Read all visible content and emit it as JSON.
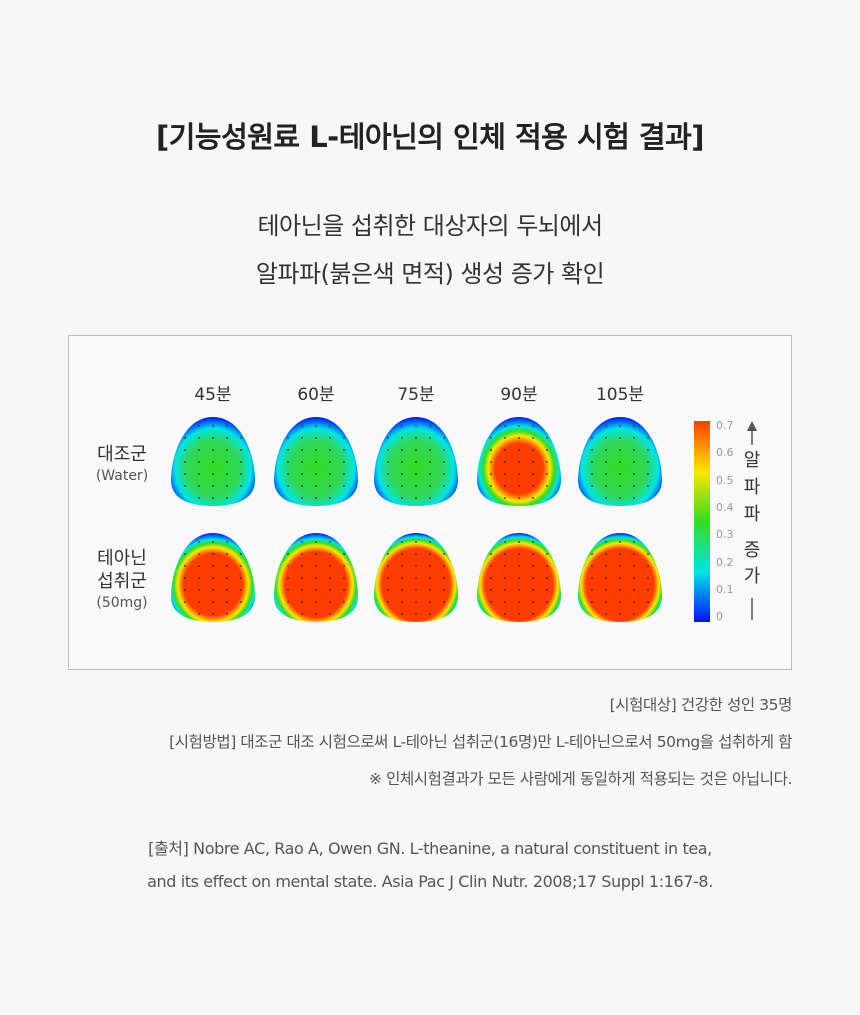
{
  "title": "[기능성원료 L-테아닌의 인체 적용 시험 결과]",
  "subtitle": [
    "테아닌을 섭취한 대상자의 두뇌에서",
    "알파파(붉은색 면적) 생성 증가 확인"
  ],
  "chart_data": {
    "type": "heatmap",
    "columns": [
      "45분",
      "60분",
      "75분",
      "90분",
      "105분"
    ],
    "rows": [
      {
        "label": "대조군",
        "sublabel": "(Water)",
        "alpha_level": [
          0.3,
          0.33,
          0.33,
          0.37,
          0.33
        ]
      },
      {
        "label_lines": [
          "테아닌",
          "섭취군"
        ],
        "sublabel": "(50mg)",
        "alpha_level": [
          0.55,
          0.6,
          0.7,
          0.7,
          0.7
        ]
      }
    ],
    "colorbar": {
      "min": 0,
      "max": 0.7,
      "ticks": [
        "0.7",
        "0.6",
        "0.5",
        "0.4",
        "0.3",
        "0.2",
        "0.1",
        "0"
      ],
      "colors": [
        "#ff3d00",
        "#ffe600",
        "#33dd22",
        "#00e5e5",
        "#0010ff"
      ]
    },
    "axis_label": [
      "알",
      "파",
      "파",
      "증",
      "가"
    ]
  },
  "notes": [
    "[시험대상] 건강한 성인 35명",
    "[시험방법] 대조군 대조 시험으로써 L-테아닌 섭취군(16명)만 L-테아닌으로서 50mg을 섭취하게 함",
    "※ 인체시험결과가 모든 사람에게 동일하게 적용되는 것은 아닙니다."
  ],
  "source": [
    "[출처] Nobre AC, Rao A, Owen GN. L-theanine, a natural constituent in tea,",
    "and its effect on mental state. Asia Pac J Clin Nutr. 2008;17 Suppl 1:167-8."
  ]
}
